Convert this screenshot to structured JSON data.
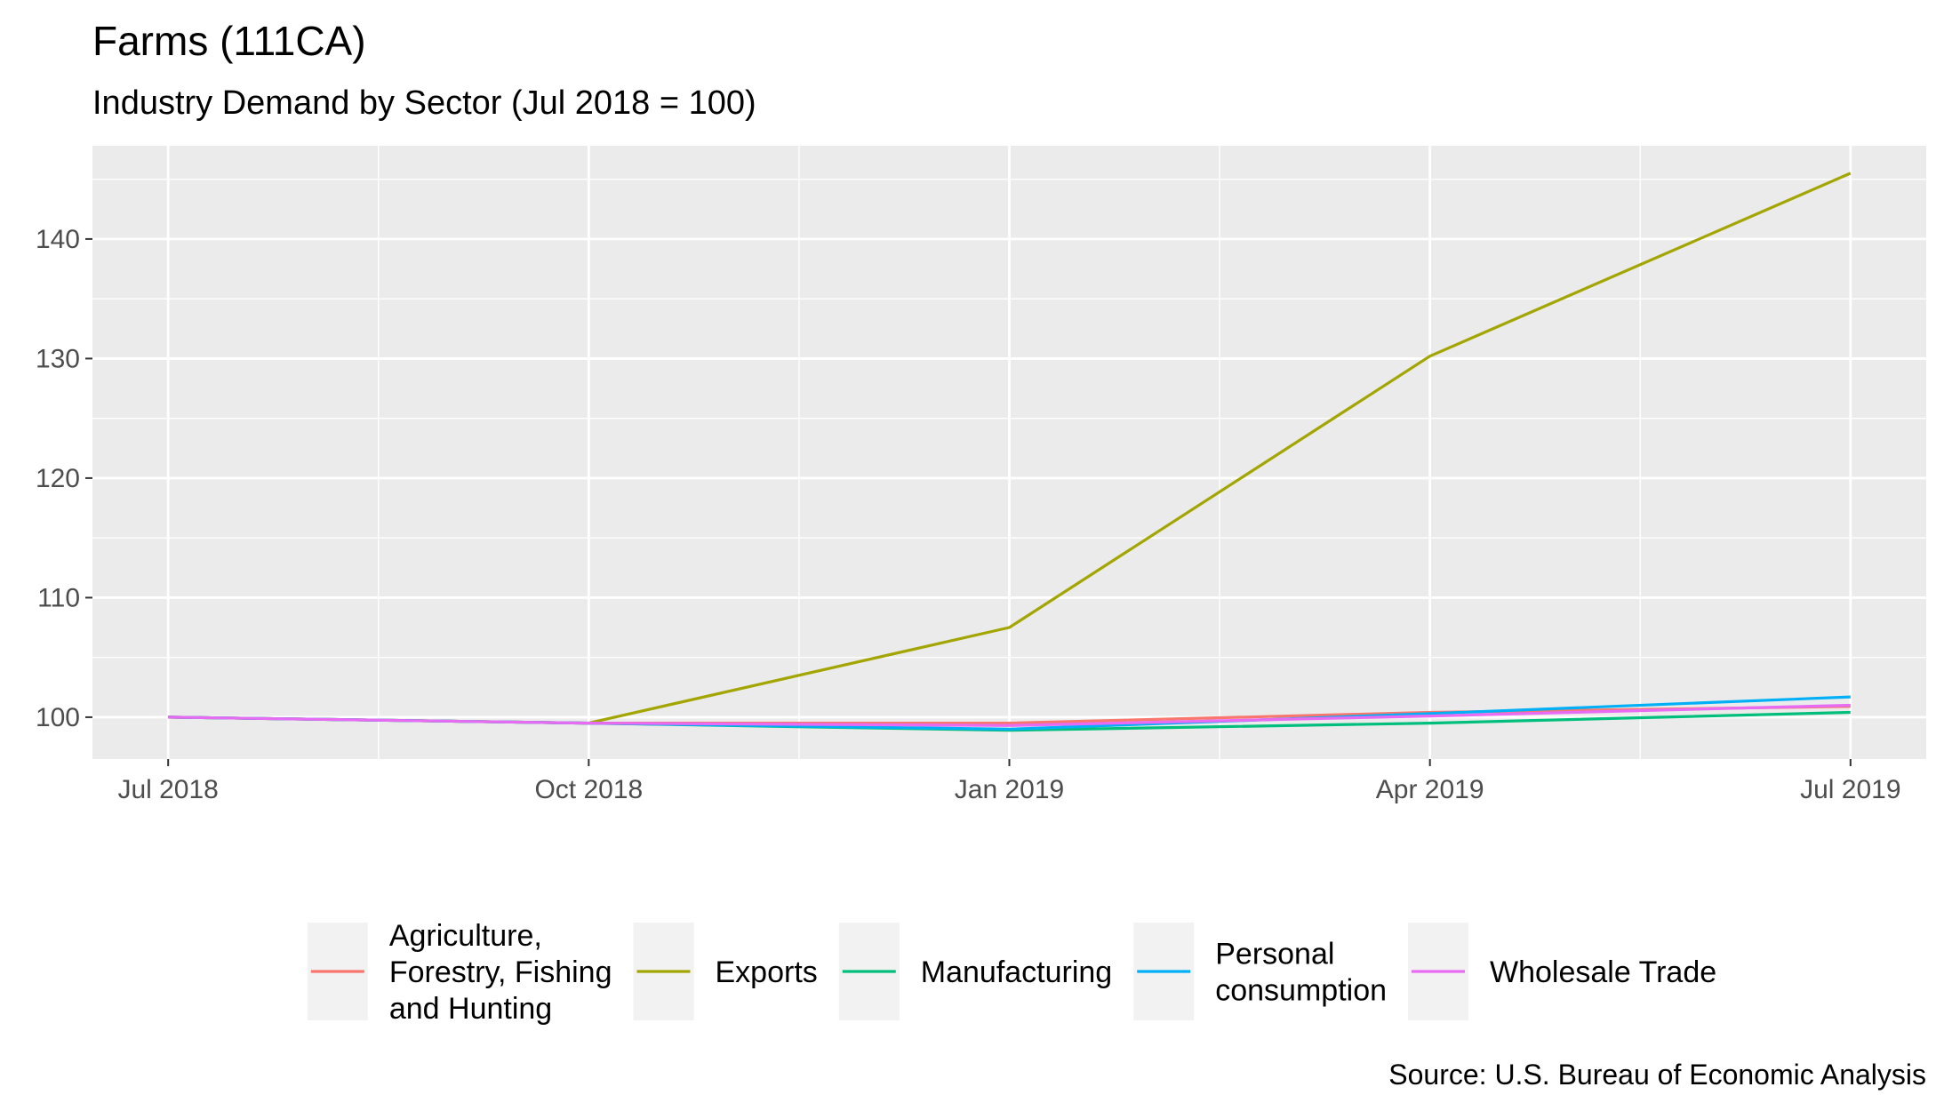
{
  "chart_data": {
    "type": "line",
    "title": "Farms (111CA)",
    "subtitle": "Industry Demand by Sector (Jul 2018 = 100)",
    "xlabel": "",
    "ylabel": "",
    "caption": "Source: U.S. Bureau of Economic Analysis",
    "x": [
      "2018-07",
      "2018-10",
      "2019-01",
      "2019-04",
      "2019-07"
    ],
    "x_tick_labels": [
      "Jul 2018",
      "Oct 2018",
      "Jan 2019",
      "Apr 2019",
      "Jul 2019"
    ],
    "y_ticks": [
      100,
      110,
      120,
      130,
      140
    ],
    "ylim": [
      96.5,
      147.8
    ],
    "grid": true,
    "legend_position": "bottom",
    "series": [
      {
        "name": "Agriculture, Forestry, Fishing and Hunting",
        "legend_lines": [
          "Agriculture,",
          "Forestry, Fishing",
          "and Hunting"
        ],
        "color": "#F8766D",
        "values": [
          100,
          99.5,
          99.5,
          100.4,
          100.9
        ]
      },
      {
        "name": "Exports",
        "legend_lines": [
          "Exports"
        ],
        "color": "#A3A500",
        "values": [
          100,
          99.5,
          107.5,
          130.2,
          145.5
        ]
      },
      {
        "name": "Manufacturing",
        "legend_lines": [
          "Manufacturing"
        ],
        "color": "#00BF7D",
        "values": [
          100,
          99.5,
          98.9,
          99.5,
          100.4
        ]
      },
      {
        "name": "Personal consumption",
        "legend_lines": [
          "Personal",
          "consumption"
        ],
        "color": "#00B0F6",
        "values": [
          100,
          99.5,
          99.0,
          100.3,
          101.7
        ]
      },
      {
        "name": "Wholesale Trade",
        "legend_lines": [
          "Wholesale Trade"
        ],
        "color": "#E76BF3",
        "values": [
          100,
          99.5,
          99.3,
          100.1,
          101.0
        ]
      }
    ]
  }
}
